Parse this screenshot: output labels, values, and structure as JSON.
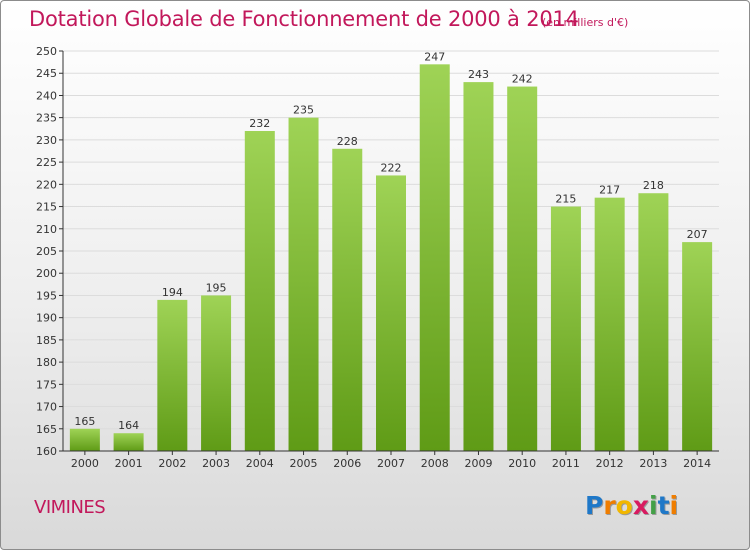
{
  "chart_data": {
    "type": "bar",
    "title": "Dotation Globale de Fonctionnement de 2000 à 2014",
    "subtitle": "(en milliers d'€)",
    "categories": [
      "2000",
      "2001",
      "2002",
      "2003",
      "2004",
      "2005",
      "2006",
      "2007",
      "2008",
      "2009",
      "2010",
      "2011",
      "2012",
      "2013",
      "2014"
    ],
    "values": [
      165,
      164,
      194,
      195,
      232,
      235,
      228,
      222,
      247,
      243,
      242,
      215,
      217,
      218,
      207
    ],
    "ylim": [
      160,
      250
    ],
    "yticks": [
      160,
      165,
      170,
      175,
      180,
      185,
      190,
      195,
      200,
      205,
      210,
      215,
      220,
      225,
      230,
      235,
      240,
      245,
      250
    ],
    "grid": true,
    "colors": {
      "bar_light": "#9fd356",
      "bar_dark": "#5f9b16",
      "grid": "#dcdcdc",
      "axis": "#333333"
    }
  },
  "footer": {
    "city": "VIMINES",
    "logo": {
      "letters": [
        "P",
        "r",
        "o",
        "x",
        "i",
        "t",
        "i"
      ],
      "colors": [
        "#1f78c8",
        "#ef7d00",
        "#f2b700",
        "#d81b60",
        "#43a047",
        "#1f78c8",
        "#ef7d00"
      ]
    }
  }
}
